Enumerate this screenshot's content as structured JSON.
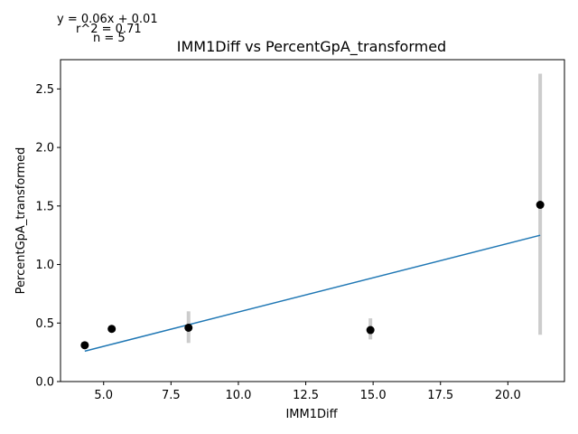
{
  "chart_data": {
    "type": "scatter",
    "title": "IMM1Diff vs PercentGpA_transformed",
    "xlabel": "IMM1Diff",
    "ylabel": "PercentGpA_transformed",
    "xlim": [
      3.4,
      22.1
    ],
    "ylim": [
      0,
      2.75
    ],
    "xticks": [
      5.0,
      7.5,
      10.0,
      12.5,
      15.0,
      17.5,
      20.0
    ],
    "xtick_labels": [
      "5.0",
      "7.5",
      "10.0",
      "12.5",
      "15.0",
      "17.5",
      "20.0"
    ],
    "yticks": [
      0.0,
      0.5,
      1.0,
      1.5,
      2.0,
      2.5
    ],
    "ytick_labels": [
      "0.0",
      "0.5",
      "1.0",
      "1.5",
      "2.0",
      "2.5"
    ],
    "grid": false,
    "points": [
      {
        "x": 4.3,
        "y": 0.31,
        "err_low": 0.31,
        "err_high": 0.31
      },
      {
        "x": 5.3,
        "y": 0.45,
        "err_low": 0.45,
        "err_high": 0.45
      },
      {
        "x": 8.15,
        "y": 0.46,
        "err_low": 0.33,
        "err_high": 0.6
      },
      {
        "x": 14.9,
        "y": 0.44,
        "err_low": 0.36,
        "err_high": 0.54
      },
      {
        "x": 21.2,
        "y": 1.51,
        "err_low": 0.4,
        "err_high": 2.63
      }
    ],
    "fit_line": {
      "x0": 4.3,
      "y0": 0.26,
      "x1": 21.2,
      "y1": 1.25
    },
    "annotations": [
      "y = 0.06x + 0.01",
      "r^2 = 0.71",
      "n = 5"
    ],
    "colors": {
      "points": "#000000",
      "errorbars": "#cccccc",
      "fit": "#1f77b4",
      "axes": "#000000"
    }
  }
}
